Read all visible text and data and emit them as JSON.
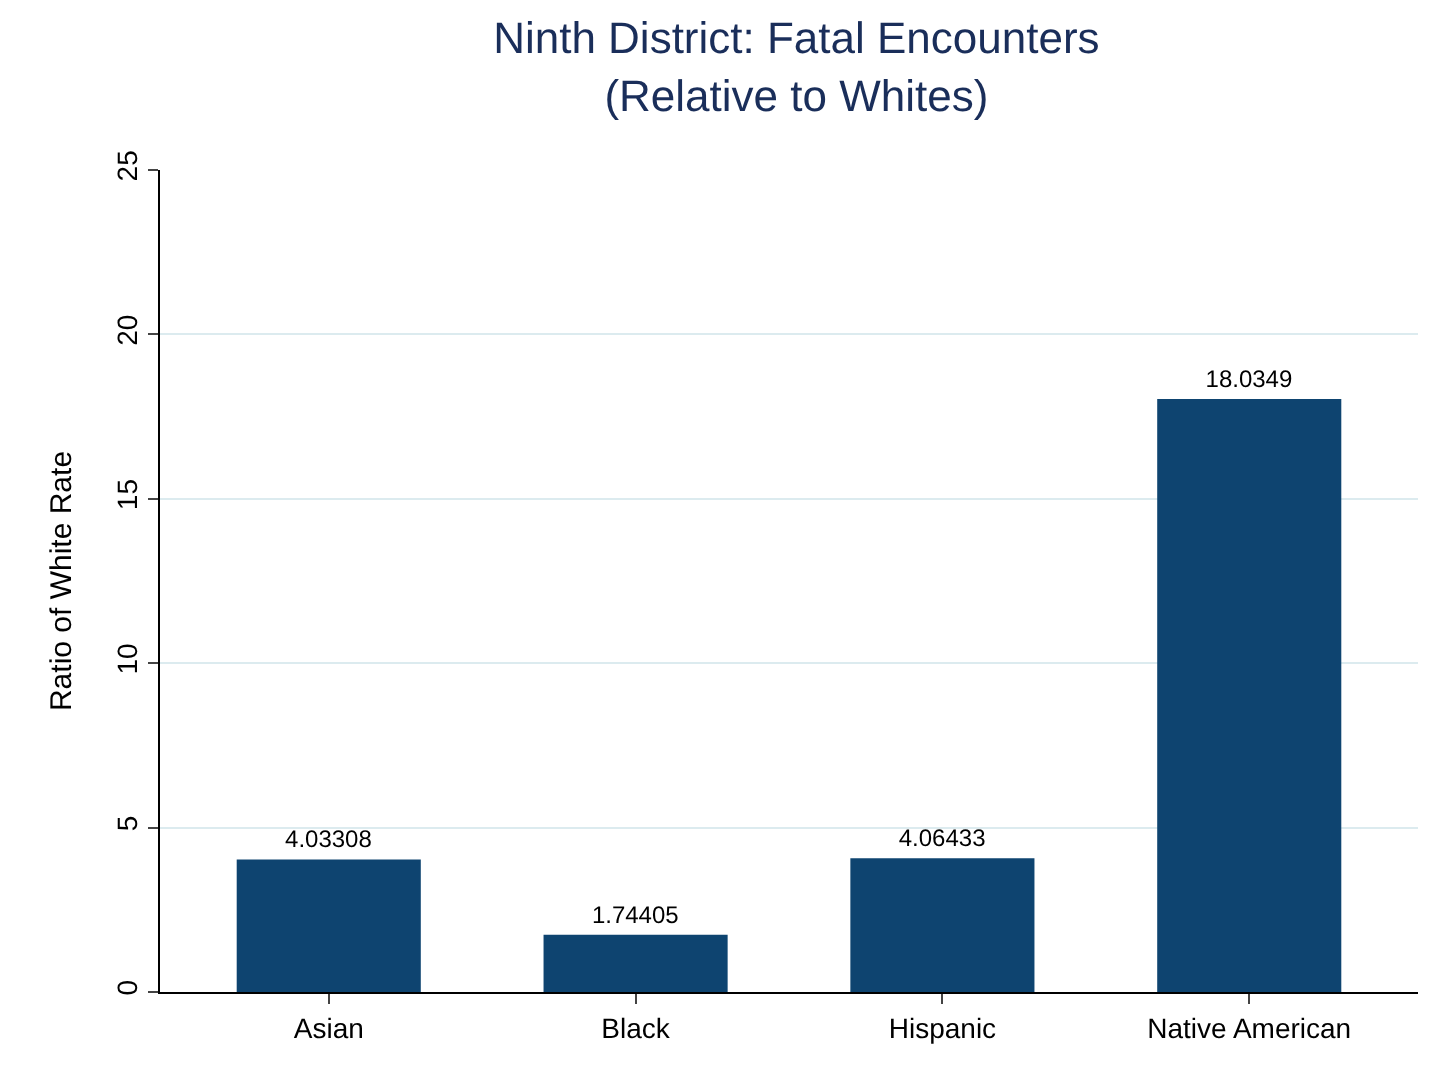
{
  "chart_data": {
    "type": "bar",
    "title": "Ninth District: Fatal Encounters\n(Relative to Whites)",
    "ylabel": "Ratio of White Rate",
    "categories": [
      "Asian",
      "Black",
      "Hispanic",
      "Native American"
    ],
    "values": [
      4.03308,
      1.74405,
      4.06433,
      18.0349
    ],
    "value_labels": [
      "4.03308",
      "1.74405",
      "4.06433",
      "18.0349"
    ],
    "color": "#0e4470",
    "ylim": [
      0,
      25
    ],
    "yticks": [
      0,
      5,
      10,
      15,
      20,
      25
    ],
    "grid": "y"
  }
}
